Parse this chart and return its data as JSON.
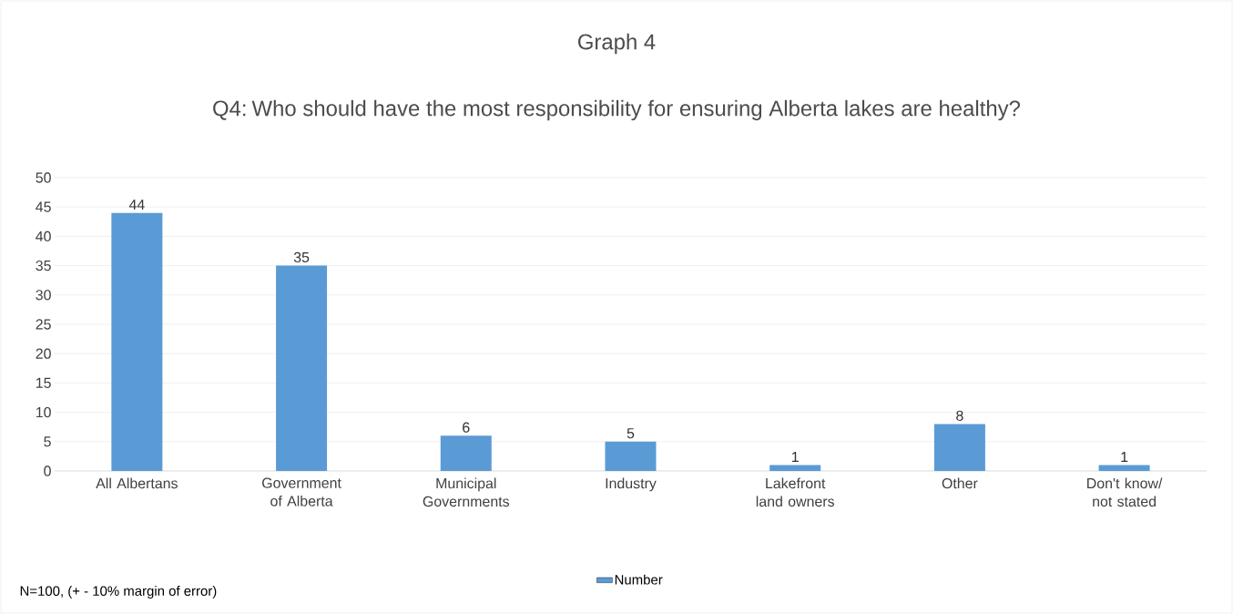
{
  "chart_data": {
    "type": "bar",
    "title": "Graph 4",
    "subtitle": "Q4: Who should have the most responsibility for ensuring Alberta lakes are healthy?",
    "categories": [
      "All Albertans",
      "Government of Alberta",
      "Municipal Governments",
      "Industry",
      "Lakefront land owners",
      "Other",
      "Don't know/ not stated"
    ],
    "series": [
      {
        "name": "Number",
        "color": "#5b9bd5",
        "values": [
          44,
          35,
          6,
          5,
          1,
          8,
          1
        ]
      }
    ],
    "ylim": [
      0,
      50
    ],
    "yticks": [
      0,
      5,
      10,
      15,
      20,
      25,
      30,
      35,
      40,
      45,
      50
    ],
    "grid": "y",
    "legend": "bottom",
    "data_labels": true,
    "annotations": [
      "N=100, (+ - 10% margin of error)"
    ]
  }
}
